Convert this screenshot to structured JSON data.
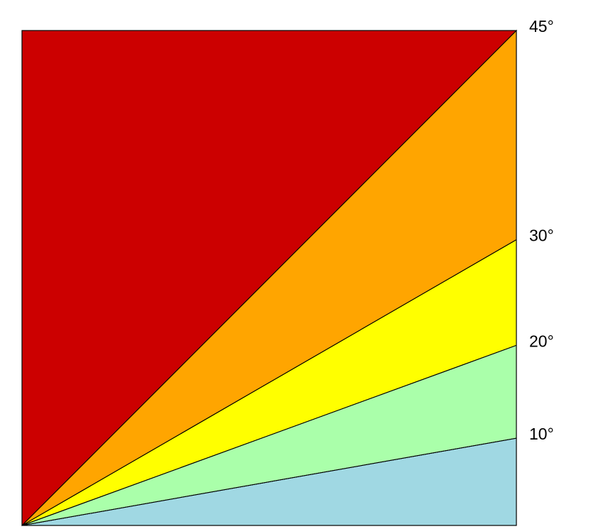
{
  "diagram": {
    "regions": [
      {
        "id": "0-10",
        "from_deg": 0,
        "to_deg": 10,
        "color": "#a0d8e3"
      },
      {
        "id": "10-20",
        "from_deg": 10,
        "to_deg": 20,
        "color": "#aaffaa"
      },
      {
        "id": "20-30",
        "from_deg": 20,
        "to_deg": 30,
        "color": "#ffff00"
      },
      {
        "id": "30-45",
        "from_deg": 30,
        "to_deg": 45,
        "color": "#ffa500"
      },
      {
        "id": "45-90",
        "from_deg": 45,
        "to_deg": 90,
        "color": "#cc0000"
      }
    ],
    "boundaries": [
      {
        "deg": 10,
        "label": "10°"
      },
      {
        "deg": 20,
        "label": "20°"
      },
      {
        "deg": 30,
        "label": "30°"
      },
      {
        "deg": 45,
        "label": "45°"
      }
    ]
  }
}
